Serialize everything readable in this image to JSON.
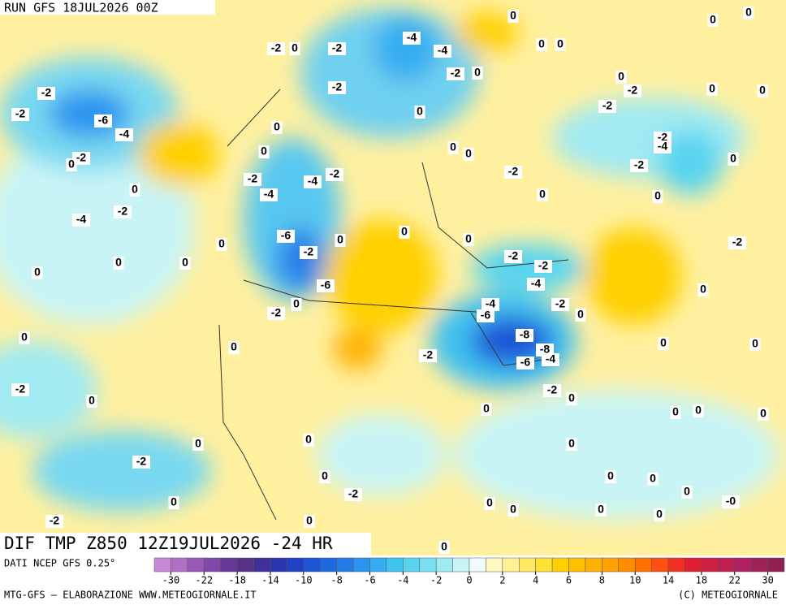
{
  "header": {
    "run": "RUN GFS 18JUL2026 00Z"
  },
  "map": {
    "title": "DIF TMP Z850 12Z19JUL2026 -24 HR",
    "contour_labels": [
      "-2",
      "-2",
      "-6",
      "-4",
      "-2",
      "0",
      "0",
      "-4",
      "-2",
      "0",
      "0",
      "0",
      "0",
      "0",
      "-2",
      "0",
      "0",
      "-2",
      "0",
      "-2",
      "-2",
      "0",
      "-2",
      "0",
      "0",
      "-2",
      "-4",
      "-4",
      "-2",
      "0",
      "-6",
      "-2",
      "-6",
      "-2",
      "0",
      "0",
      "-4",
      "-4",
      "-2",
      "-2",
      "0",
      "-2",
      "0",
      "0",
      "0",
      "-2",
      "-2",
      "-4",
      "-4",
      "-6",
      "-2",
      "-8",
      "-8",
      "-6",
      "-4",
      "-2",
      "-2",
      "0",
      "0",
      "0",
      "-2",
      "0",
      "0",
      "0",
      "0",
      "0",
      "0",
      "0",
      "0",
      "0",
      "-0",
      "0",
      "0",
      "0",
      "0",
      "0",
      "0",
      "0",
      "-2",
      "0",
      "-2",
      "-2",
      "-4",
      "0",
      "-2",
      "-2",
      "0",
      "0",
      "0",
      "0",
      "0",
      "0",
      "0",
      "0",
      "0",
      "0",
      "0",
      "0",
      "0"
    ]
  },
  "colorbar": {
    "source": "DATI NCEP GFS 0.25°",
    "colors": [
      "#c888d8",
      "#b070c8",
      "#9858b8",
      "#8048a8",
      "#683898",
      "#583088",
      "#40309c",
      "#2c34b0",
      "#2040c8",
      "#1c54d8",
      "#2068e0",
      "#247ce8",
      "#2c94f0",
      "#34acf0",
      "#40c4f0",
      "#58d4f0",
      "#78e0f0",
      "#a0eaf2",
      "#c8f4f6",
      "#f0fcfa",
      "#fff8c0",
      "#fff094",
      "#ffe864",
      "#ffe034",
      "#ffd000",
      "#ffc000",
      "#ffb000",
      "#ffa000",
      "#ff8c00",
      "#ff7000",
      "#ff5010",
      "#f03020",
      "#e02030",
      "#d02040",
      "#c02050",
      "#b02060",
      "#a02058",
      "#902050"
    ],
    "ticks": [
      -30,
      -22,
      -18,
      -14,
      -10,
      -8,
      -6,
      -4,
      -2,
      0,
      2,
      4,
      6,
      8,
      10,
      14,
      18,
      22,
      30
    ]
  },
  "footer": {
    "left": "MTG-GFS — ELABORAZIONE WWW.METEOGIORNALE.IT",
    "right": "(C) METEOGIORNALE"
  }
}
